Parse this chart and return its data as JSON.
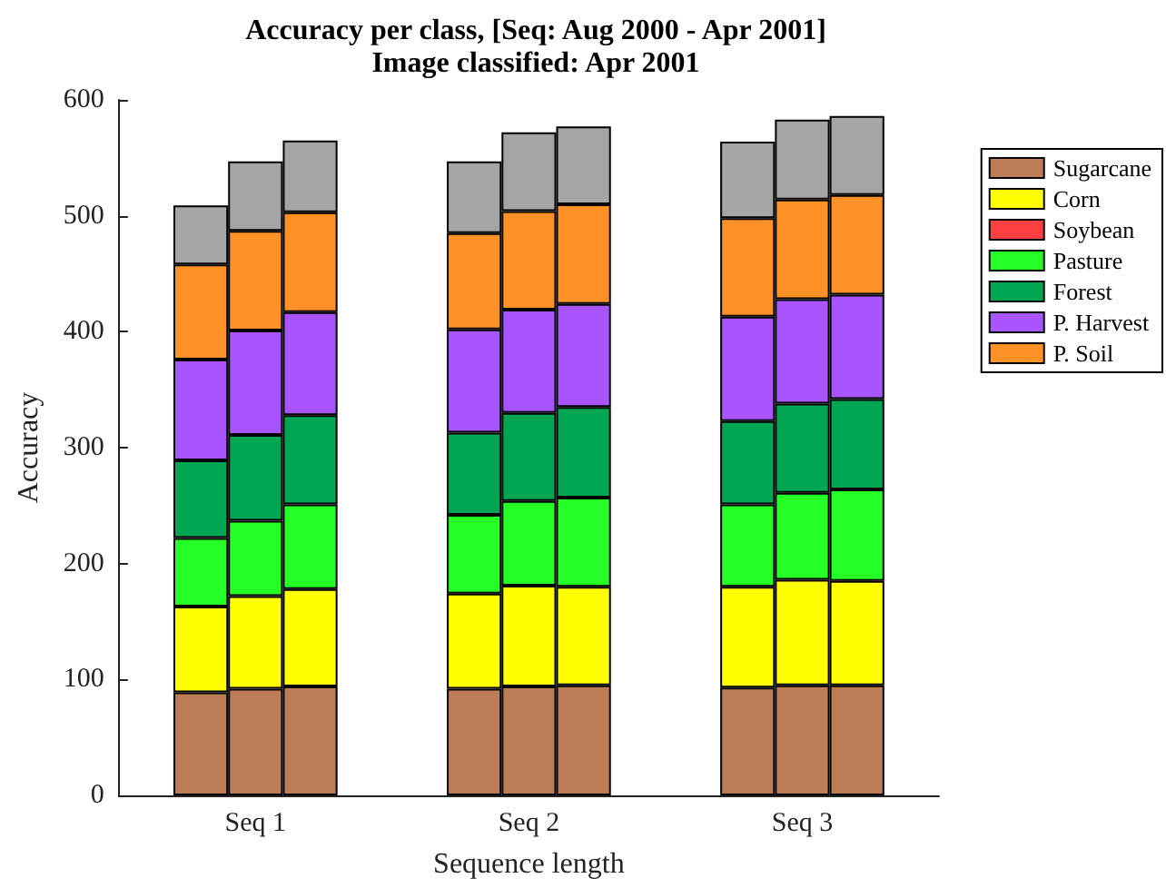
{
  "chart_data": {
    "type": "bar",
    "stacked": true,
    "title": "Accuracy per class, [Seq: Aug 2000 - Apr 2001]",
    "subtitle": "Image classified: Apr 2001",
    "xlabel": "Sequence length",
    "ylabel": "Accuracy",
    "categories": [
      null,
      null,
      "Seq 1",
      null,
      null,
      null,
      null,
      "Seq 2",
      null,
      null,
      null,
      null,
      "Seq 3",
      null,
      null
    ],
    "series": [
      {
        "name": "Sugarcane",
        "color": "#bc7c56",
        "values": [
          null,
          89,
          92,
          94,
          null,
          null,
          92,
          94,
          95,
          null,
          null,
          93,
          95,
          95,
          null
        ]
      },
      {
        "name": "Corn",
        "color": "#ffff00",
        "values": [
          null,
          74,
          80,
          84,
          null,
          null,
          82,
          87,
          85,
          null,
          null,
          87,
          91,
          90,
          null
        ]
      },
      {
        "name": "Soybean",
        "color": "#ff4040",
        "values": [
          null,
          0,
          0,
          0,
          null,
          null,
          0,
          0,
          0,
          null,
          null,
          0,
          0,
          0,
          null
        ]
      },
      {
        "name": "Pasture",
        "color": "#26ff26",
        "values": [
          null,
          59,
          65,
          73,
          null,
          null,
          68,
          73,
          77,
          null,
          null,
          71,
          75,
          79,
          null
        ]
      },
      {
        "name": "Forest",
        "color": "#00a651",
        "values": [
          null,
          67,
          74,
          77,
          null,
          null,
          71,
          76,
          78,
          null,
          null,
          72,
          77,
          78,
          null
        ]
      },
      {
        "name": "P. Harvest",
        "color": "#a855ff",
        "values": [
          null,
          87,
          90,
          89,
          null,
          null,
          89,
          89,
          89,
          null,
          null,
          90,
          90,
          90,
          null
        ]
      },
      {
        "name": "P. Soil",
        "color": "#ff9126",
        "values": [
          null,
          82,
          86,
          86,
          null,
          null,
          83,
          85,
          86,
          null,
          null,
          85,
          86,
          86,
          null
        ]
      },
      {
        "color": "#a5a5a5",
        "values": [
          null,
          51,
          60,
          62,
          null,
          null,
          62,
          68,
          67,
          null,
          null,
          66,
          69,
          68,
          null
        ]
      }
    ],
    "ylim": [
      0,
      600
    ],
    "yticks": [
      0,
      100,
      200,
      300,
      400,
      500,
      600
    ],
    "grid": false,
    "legend": "top right"
  }
}
